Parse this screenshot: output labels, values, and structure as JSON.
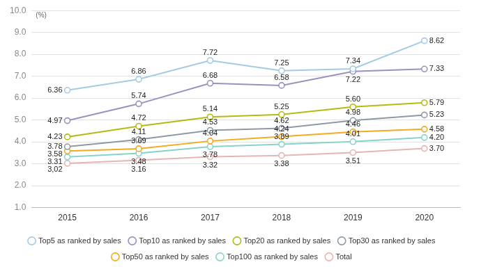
{
  "chart_data": {
    "type": "line",
    "ylabel": "(%)",
    "categories": [
      "2015",
      "2016",
      "2017",
      "2018",
      "2019",
      "2020"
    ],
    "ylim": [
      1,
      10
    ],
    "yticks": [
      {
        "value": 1,
        "label": "1.0"
      },
      {
        "value": 2,
        "label": "2.0"
      },
      {
        "value": 3,
        "label": "3.0"
      },
      {
        "value": 4,
        "label": "4.0"
      },
      {
        "value": 5,
        "label": "5.0"
      },
      {
        "value": 6,
        "label": "6.0"
      },
      {
        "value": 7,
        "label": "7.0"
      },
      {
        "value": 8,
        "label": "8.0"
      },
      {
        "value": 9,
        "label": "9.0"
      },
      {
        "value": 10,
        "label": "10.0"
      }
    ],
    "grid": true,
    "legend": "bottom",
    "data_labels": true,
    "marker": "circle",
    "line_style": "solid",
    "series": [
      {
        "name": "Top5 as ranked by sales",
        "color": "#a3cbe2",
        "values": [
          6.36,
          6.86,
          7.72,
          7.25,
          7.34,
          8.62
        ],
        "value_labels": [
          "6.36",
          "6.86",
          "7.72",
          "7.25",
          "7.34",
          "8.62"
        ]
      },
      {
        "name": "Top10 as ranked by sales",
        "color": "#9d8fbf",
        "values": [
          4.97,
          5.74,
          6.68,
          6.58,
          7.22,
          7.33
        ],
        "value_labels": [
          "4.97",
          "5.74",
          "6.68",
          "6.58",
          "7.22",
          "7.33"
        ]
      },
      {
        "name": "Top20 as ranked by sales",
        "color": "#b4bb10",
        "values": [
          4.23,
          4.72,
          5.14,
          5.25,
          5.6,
          5.79
        ],
        "value_labels": [
          "4.23",
          "4.72",
          "5.14",
          "5.25",
          "5.60",
          "5.79"
        ]
      },
      {
        "name": "Top30 as ranked by sales",
        "color": "#8e99a4",
        "values": [
          3.78,
          4.11,
          4.53,
          4.62,
          4.98,
          5.23
        ],
        "value_labels": [
          "3.78",
          "4.11",
          "4.53",
          "4.62",
          "4.98",
          "5.23"
        ]
      },
      {
        "name": "Top50 as ranked by sales",
        "color": "#f4aa1c",
        "values": [
          3.58,
          3.69,
          4.04,
          4.24,
          4.46,
          4.58
        ],
        "value_labels": [
          "3.58",
          "3.69",
          "4.04",
          "4.24",
          "4.46",
          "4.58"
        ]
      },
      {
        "name": "Top100 as ranked by sales",
        "color": "#86d3cb",
        "values": [
          3.31,
          3.48,
          3.78,
          3.89,
          4.01,
          4.2
        ],
        "value_labels": [
          "3.31",
          "3.48",
          "3.78",
          "3.89",
          "4.01",
          "4.20"
        ]
      },
      {
        "name": "Total",
        "color": "#e6b5b1",
        "values": [
          3.02,
          3.16,
          3.32,
          3.38,
          3.51,
          3.7
        ],
        "value_labels": [
          "3,02",
          "3.16",
          "3.32",
          "3.38",
          "3.51",
          "3.70"
        ]
      }
    ]
  }
}
